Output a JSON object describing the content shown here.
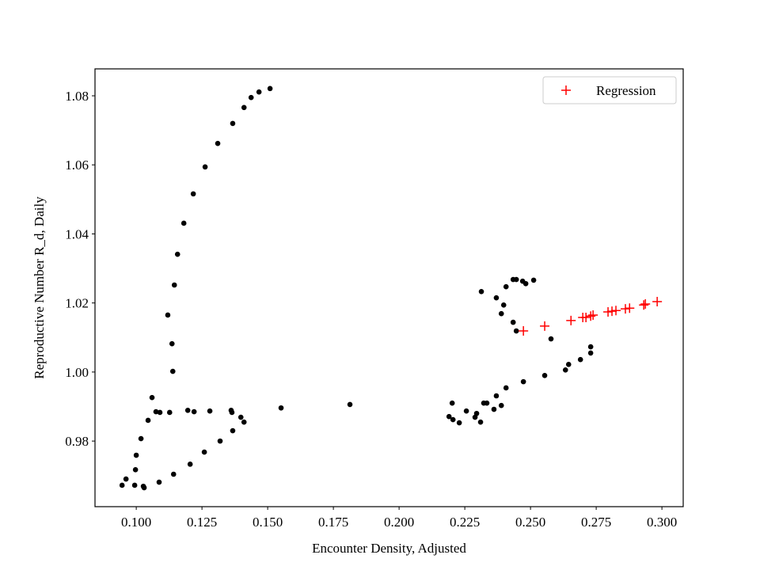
{
  "chart_data": {
    "type": "scatter",
    "xlabel": "Encounter Density, Adjusted",
    "ylabel": "Reproductive Number R_d, Daily",
    "xlim": [
      0.0843,
      0.3081
    ],
    "ylim": [
      0.961,
      1.0878
    ],
    "xticks": [
      {
        "value": 0.1,
        "label": "0.100"
      },
      {
        "value": 0.125,
        "label": "0.125"
      },
      {
        "value": 0.15,
        "label": "0.150"
      },
      {
        "value": 0.175,
        "label": "0.175"
      },
      {
        "value": 0.2,
        "label": "0.200"
      },
      {
        "value": 0.225,
        "label": "0.225"
      },
      {
        "value": 0.25,
        "label": "0.250"
      },
      {
        "value": 0.275,
        "label": "0.275"
      },
      {
        "value": 0.3,
        "label": "0.300"
      }
    ],
    "yticks": [
      0.98,
      {
        "value": 1.0,
        "label": "1.00"
      },
      1.02,
      1.04,
      1.06,
      1.08
    ],
    "legend": "upper right",
    "series": [
      {
        "color": "#000000",
        "marker": "o",
        "x": [
          0.1509,
          0.1467,
          0.1437,
          0.141,
          0.1367,
          0.131,
          0.1262,
          0.1217,
          0.1181,
          0.1157,
          0.1145,
          0.112,
          0.1136,
          0.1139,
          0.106,
          0.1075,
          0.109,
          0.1127,
          0.1045,
          0.1018,
          0.1,
          0.0997,
          0.0994,
          0.0946,
          0.0961,
          0.1027,
          0.103,
          0.1087,
          0.1142,
          0.1205,
          0.1259,
          0.1319,
          0.1367,
          0.1364,
          0.1361,
          0.128,
          0.122,
          0.1196,
          0.1398,
          0.141,
          0.1551,
          0.1813,
          0.219,
          0.2202,
          0.2205,
          0.2229,
          0.2256,
          0.2289,
          0.2295,
          0.231,
          0.2322,
          0.2334,
          0.2361,
          0.237,
          0.2389,
          0.2407,
          0.2389,
          0.237,
          0.2398,
          0.2407,
          0.2434,
          0.2446,
          0.2313,
          0.2434,
          0.2446,
          0.247,
          0.2482,
          0.2512,
          0.2578,
          0.2473,
          0.2554,
          0.2633,
          0.2645,
          0.269,
          0.2729,
          0.2729
        ],
        "values": [
          1.0821,
          1.0811,
          1.0795,
          1.0766,
          1.072,
          1.0662,
          1.0594,
          1.0516,
          1.0431,
          1.0341,
          1.0252,
          1.0165,
          1.0082,
          1.0002,
          0.9926,
          0.9885,
          0.9883,
          0.9883,
          0.986,
          0.9807,
          0.9759,
          0.9717,
          0.9672,
          0.9672,
          0.969,
          0.9669,
          0.9665,
          0.9681,
          0.9704,
          0.9733,
          0.9768,
          0.98,
          0.983,
          0.9883,
          0.9889,
          0.9887,
          0.9885,
          0.9889,
          0.9869,
          0.9855,
          0.9896,
          0.9906,
          0.9871,
          0.991,
          0.9862,
          0.9853,
          0.9887,
          0.9869,
          0.988,
          0.9855,
          0.991,
          0.991,
          0.9892,
          0.9931,
          0.9903,
          0.9954,
          1.0169,
          1.0215,
          1.0194,
          1.0247,
          1.0144,
          1.0119,
          1.0233,
          1.0268,
          1.0268,
          1.0263,
          1.0256,
          1.0266,
          1.0096,
          0.9972,
          0.999,
          1.0006,
          1.0022,
          1.0036,
          1.0073,
          1.0055
        ]
      },
      {
        "name": "Regression",
        "color": "#ff0000",
        "marker": "+",
        "x": [
          0.2473,
          0.2554,
          0.2654,
          0.2699,
          0.2711,
          0.2729,
          0.2738,
          0.2795,
          0.281,
          0.2825,
          0.2861,
          0.2877,
          0.2931,
          0.2937,
          0.2982
        ],
        "values": [
          1.0119,
          1.0133,
          1.0149,
          1.0158,
          1.0158,
          1.0162,
          1.0165,
          1.0174,
          1.0176,
          1.0178,
          1.0183,
          1.0185,
          1.0194,
          1.0197,
          1.0204
        ]
      }
    ]
  }
}
